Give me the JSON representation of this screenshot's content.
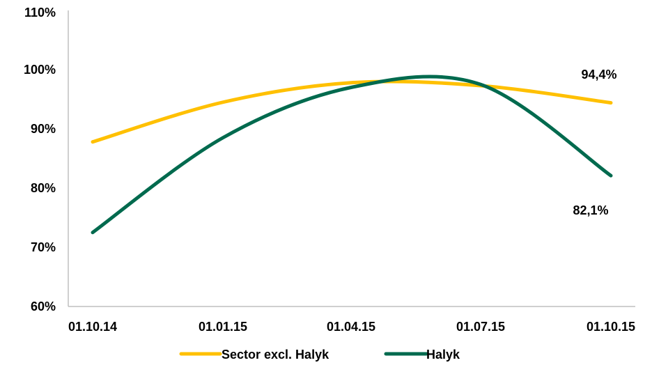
{
  "chart_data": {
    "type": "line",
    "categories": [
      "01.10.14",
      "01.01.15",
      "01.04.15",
      "01.07.15",
      "01.10.15"
    ],
    "y_ticks": [
      "60%",
      "70%",
      "80%",
      "90%",
      "100%",
      "110%"
    ],
    "ylim": [
      60,
      110
    ],
    "grid": false,
    "legend": "bottom",
    "series": [
      {
        "name": "Sector excl. Halyk",
        "color": "#FFC000",
        "values": [
          87.8,
          94.5,
          97.8,
          97.3,
          94.4
        ],
        "end_label": "94,4%"
      },
      {
        "name": "Halyk",
        "color": "#006A4E",
        "values": [
          72.5,
          88.5,
          97.0,
          97.5,
          82.1
        ],
        "end_label": "82,1%"
      }
    ]
  }
}
